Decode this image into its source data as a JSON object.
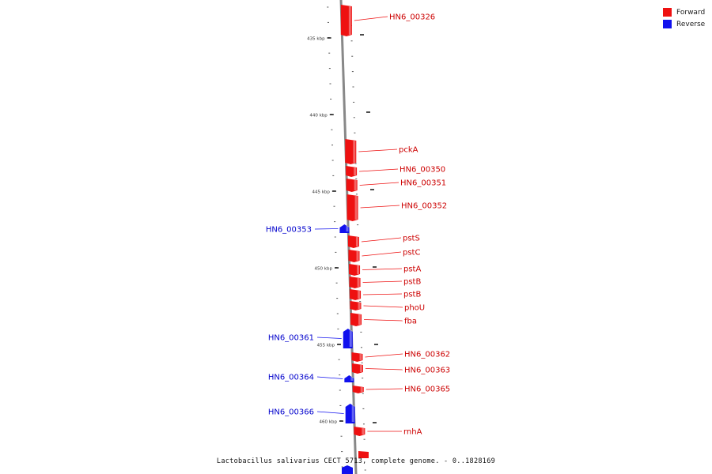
{
  "colors": {
    "forward": "#ee1111",
    "reverse": "#1111ee",
    "backbone": "#888888"
  },
  "legend": [
    {
      "label": "Forward",
      "color": "#ee1111"
    },
    {
      "label": "Reverse",
      "color": "#1111ee"
    }
  ],
  "caption": "Lactobacillus salivarius CECT 5713, complete genome. - 0..1828169",
  "ruler": [
    {
      "label": "435 kbp"
    },
    {
      "label": "440 kbp"
    },
    {
      "label": "445 kbp"
    },
    {
      "label": "450 kbp"
    },
    {
      "label": "455 kbp"
    },
    {
      "label": "460 kbp"
    }
  ],
  "genes": [
    {
      "name": "HN6_00326",
      "strand": "forward"
    },
    {
      "name": "pckA",
      "strand": "forward"
    },
    {
      "name": "HN6_00350",
      "strand": "forward"
    },
    {
      "name": "HN6_00351",
      "strand": "forward"
    },
    {
      "name": "HN6_00352",
      "strand": "forward"
    },
    {
      "name": "HN6_00353",
      "strand": "reverse"
    },
    {
      "name": "pstS",
      "strand": "forward"
    },
    {
      "name": "pstC",
      "strand": "forward"
    },
    {
      "name": "pstA",
      "strand": "forward"
    },
    {
      "name": "pstB",
      "strand": "forward"
    },
    {
      "name": "pstB",
      "strand": "forward"
    },
    {
      "name": "phoU",
      "strand": "forward"
    },
    {
      "name": "fba",
      "strand": "forward"
    },
    {
      "name": "HN6_00361",
      "strand": "reverse"
    },
    {
      "name": "HN6_00362",
      "strand": "forward"
    },
    {
      "name": "HN6_00363",
      "strand": "forward"
    },
    {
      "name": "HN6_00364",
      "strand": "reverse"
    },
    {
      "name": "HN6_00365",
      "strand": "forward"
    },
    {
      "name": "HN6_00366",
      "strand": "reverse"
    },
    {
      "name": "rnhA",
      "strand": "forward"
    }
  ]
}
